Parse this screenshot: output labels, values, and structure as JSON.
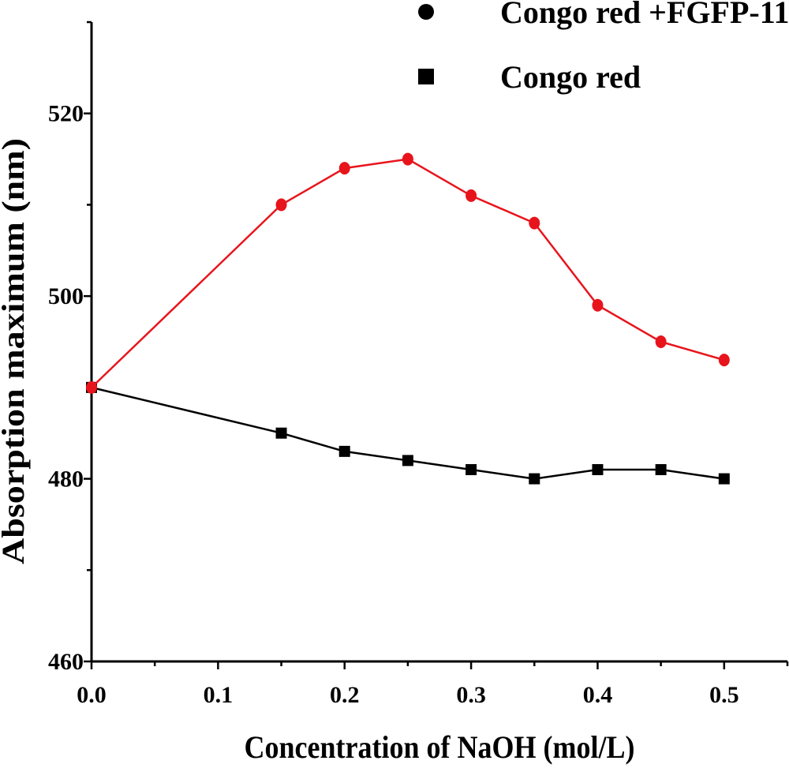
{
  "chart_data": {
    "type": "line",
    "title": "",
    "xlabel": "Concentration of NaOH (mol/L)",
    "ylabel": "Absorption maximum (nm)",
    "xlim": [
      0,
      0.55
    ],
    "ylim": [
      460,
      530
    ],
    "x_ticks": [
      0.0,
      0.1,
      0.2,
      0.3,
      0.4,
      0.5
    ],
    "x_tick_labels": [
      "0.0",
      "0.1",
      "0.2",
      "0.3",
      "0.4",
      "0.5"
    ],
    "y_ticks": [
      460,
      480,
      500,
      520
    ],
    "y_tick_labels": [
      "460",
      "480",
      "500",
      "520"
    ],
    "grid": false,
    "legend_position": "top-right",
    "series": [
      {
        "name": "Congo red +FGFP-11",
        "color": "#e8141c",
        "marker": "circle",
        "x": [
          0.0,
          0.15,
          0.2,
          0.25,
          0.3,
          0.35,
          0.4,
          0.45,
          0.5
        ],
        "y": [
          490,
          510,
          514,
          515,
          511,
          508,
          499,
          495,
          493
        ]
      },
      {
        "name": "Congo red",
        "color": "#000000",
        "marker": "square",
        "x": [
          0.0,
          0.15,
          0.2,
          0.25,
          0.3,
          0.35,
          0.4,
          0.45,
          0.5
        ],
        "y": [
          490,
          485,
          483,
          482,
          481,
          480,
          481,
          481,
          480
        ]
      }
    ]
  }
}
